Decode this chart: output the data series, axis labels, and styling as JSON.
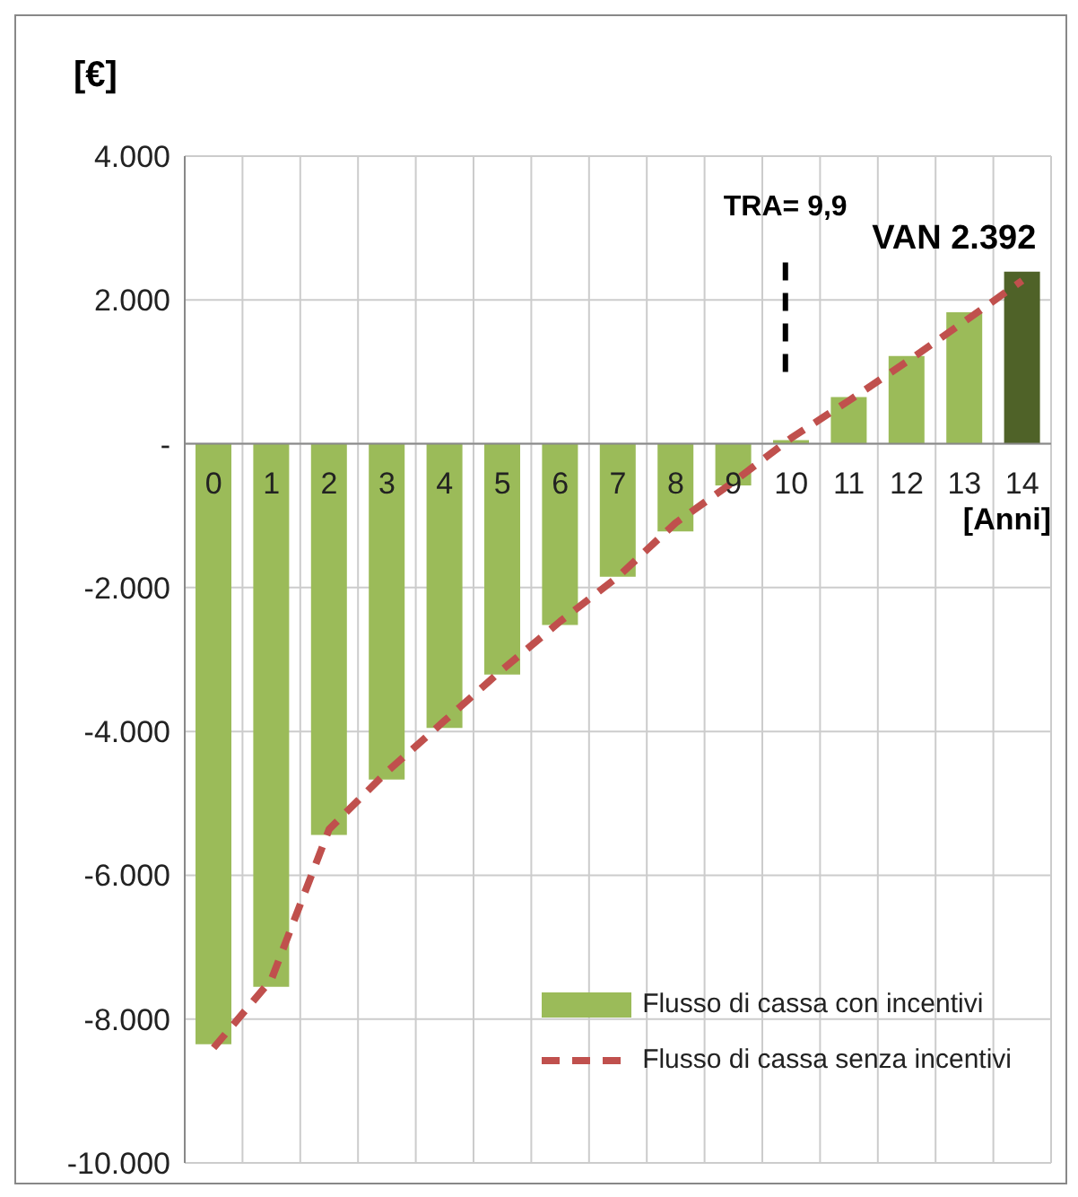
{
  "chart_data": {
    "type": "bar",
    "ylabel": "[€]",
    "xlabel": "[Anni]",
    "x": [
      0,
      1,
      2,
      3,
      4,
      5,
      6,
      7,
      8,
      9,
      10,
      11,
      12,
      13,
      14
    ],
    "xlim": [
      -0.5,
      14.5
    ],
    "xticks": [
      0,
      1,
      2,
      3,
      4,
      5,
      6,
      7,
      8,
      9,
      10,
      11,
      12,
      13,
      14
    ],
    "series": [
      {
        "name": "Flusso di cassa con incentivi",
        "color": "#9bbb59",
        "colors": [
          "#9bbb59",
          "#9bbb59",
          "#9bbb59",
          "#9bbb59",
          "#9bbb59",
          "#9bbb59",
          "#9bbb59",
          "#9bbb59",
          "#9bbb59",
          "#9bbb59",
          "#9bbb59",
          "#9bbb59",
          "#9bbb59",
          "#9bbb59",
          "#4f6228"
        ],
        "values": [
          -8350,
          -7550,
          -5440,
          -4670,
          -3950,
          -3210,
          -2520,
          -1850,
          -1220,
          -580,
          50,
          650,
          1220,
          1830,
          2392
        ]
      },
      {
        "name": "Flusso di cassa senza incentivi",
        "type": "line",
        "color": "#c0504d",
        "line_style": "dashed",
        "marker": "none",
        "values": [
          -8400,
          -7450,
          -5360,
          -4560,
          -3850,
          -3140,
          -2470,
          -1850,
          -1100,
          -530,
          80,
          600,
          1140,
          1700,
          2270
        ]
      }
    ],
    "ylim": [
      -10000,
      4000
    ],
    "yticks": [
      {
        "value": -10000,
        "label": "-10.000"
      },
      {
        "value": -8000,
        "label": "-8.000"
      },
      {
        "value": -6000,
        "label": "-6.000"
      },
      {
        "value": -4000,
        "label": "-4.000"
      },
      {
        "value": -2000,
        "label": "-2.000"
      },
      {
        "value": 0,
        "label": "-"
      },
      {
        "value": 2000,
        "label": "2.000"
      },
      {
        "value": 4000,
        "label": "4.000"
      }
    ],
    "grid": true,
    "legend": "bottom right",
    "ref_lines": [
      {
        "axis": "x",
        "value": 9.9,
        "label": "TRA= 9,9",
        "color": "#000000",
        "line_style": "dashed"
      }
    ],
    "annotations": [
      {
        "text": "VAN 2.392",
        "x": 14,
        "y": 2392
      }
    ]
  }
}
